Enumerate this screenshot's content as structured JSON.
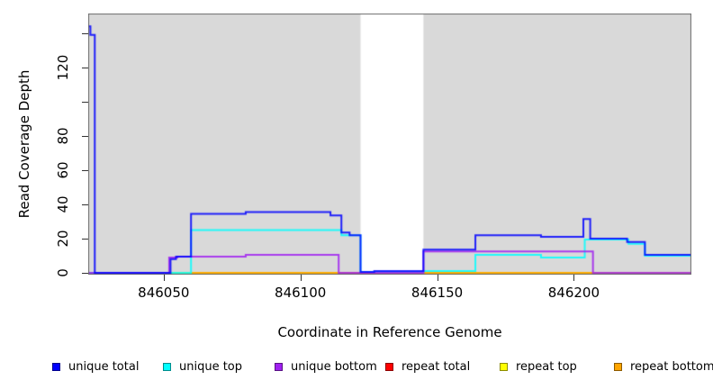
{
  "figure": {
    "x_axis_title": "Coordinate in Reference Genome",
    "y_axis_title": "Read Coverage Depth"
  },
  "chart_data": {
    "type": "line",
    "step_mode": "step-after",
    "title": "",
    "xlabel": "Coordinate in Reference Genome",
    "ylabel": "Read Coverage Depth",
    "xlim": [
      846022.4,
      846243
    ],
    "ylim": [
      0,
      152.6
    ],
    "grid": false,
    "plot_background_shaded": "#d9d9d9",
    "plot_background_gap": "#ffffff",
    "box_color": "#6e6e6e",
    "shaded_regions": [
      [
        846022.4,
        846122
      ],
      [
        846145,
        846243
      ]
    ],
    "unshaded_gap": [
      846122,
      846145
    ],
    "x_ticks": [
      {
        "value": 846050,
        "label": "846050"
      },
      {
        "value": 846100,
        "label": "846100"
      },
      {
        "value": 846150,
        "label": "846150"
      },
      {
        "value": 846200,
        "label": "846200"
      }
    ],
    "y_ticks": [
      {
        "value": 0,
        "label": "0"
      },
      {
        "value": 20,
        "label": "20"
      },
      {
        "value": 40,
        "label": "40"
      },
      {
        "value": 60,
        "label": "60"
      },
      {
        "value": 80,
        "label": "80"
      },
      {
        "value": 100,
        "label": ""
      },
      {
        "value": 120,
        "label": "120"
      },
      {
        "value": 140,
        "label": ""
      }
    ],
    "series": [
      {
        "name": "repeat total",
        "color": "#ff0000",
        "points": [
          [
            846022.4,
            0
          ],
          [
            846243,
            0
          ]
        ]
      },
      {
        "name": "repeat top",
        "color": "#ffff00",
        "points": [
          [
            846022.4,
            0
          ],
          [
            846243,
            0
          ]
        ]
      },
      {
        "name": "repeat bottom",
        "color": "#ffa500",
        "points": [
          [
            846060,
            0
          ],
          [
            846207,
            0
          ]
        ]
      },
      {
        "name": "unique top",
        "color": "#00ffff",
        "points": [
          [
            846022.4,
            0
          ],
          [
            846060,
            25
          ],
          [
            846115,
            22
          ],
          [
            846122,
            0.5
          ],
          [
            846145,
            1
          ],
          [
            846164,
            10.5
          ],
          [
            846188,
            9
          ],
          [
            846204,
            19.5
          ],
          [
            846220,
            17
          ],
          [
            846226,
            10
          ],
          [
            846243,
            10
          ]
        ]
      },
      {
        "name": "unique bottom",
        "color": "#a020f0",
        "points": [
          [
            846022.4,
            0
          ],
          [
            846052,
            9
          ],
          [
            846055,
            9.5
          ],
          [
            846080,
            10.5
          ],
          [
            846114,
            0
          ],
          [
            846145,
            12.5
          ],
          [
            846207,
            0
          ],
          [
            846243,
            0
          ]
        ]
      },
      {
        "name": "unique total",
        "color": "#0000ff",
        "points": [
          [
            846022.4,
            144
          ],
          [
            846023.2,
            139
          ],
          [
            846024.8,
            0
          ],
          [
            846052.5,
            8
          ],
          [
            846054.5,
            9.5
          ],
          [
            846060,
            34.5
          ],
          [
            846080,
            35.5
          ],
          [
            846111,
            33.5
          ],
          [
            846115,
            23.5
          ],
          [
            846118,
            22
          ],
          [
            846122,
            0.5
          ],
          [
            846127,
            1
          ],
          [
            846145,
            13.5
          ],
          [
            846164,
            22
          ],
          [
            846188,
            21
          ],
          [
            846203.5,
            31.5
          ],
          [
            846206,
            20
          ],
          [
            846219.5,
            18
          ],
          [
            846226,
            10.5
          ],
          [
            846243,
            10.5
          ]
        ]
      }
    ],
    "legend": [
      {
        "label": "unique total",
        "color": "#0000ff"
      },
      {
        "label": "unique top",
        "color": "#00ffff"
      },
      {
        "label": "unique bottom",
        "color": "#a020f0"
      },
      {
        "label": "repeat total",
        "color": "#ff0000"
      },
      {
        "label": "repeat top",
        "color": "#ffff00"
      },
      {
        "label": "repeat bottom",
        "color": "#ffa500"
      }
    ],
    "legend_position": "bottom"
  }
}
